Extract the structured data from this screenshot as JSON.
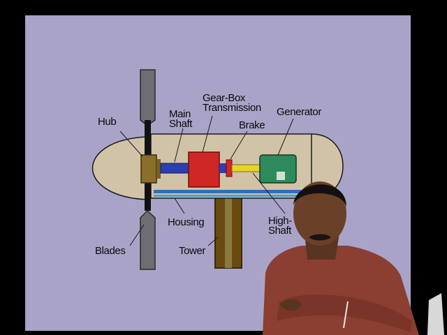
{
  "diagram": {
    "labels": {
      "hub": "Hub",
      "main_shaft": [
        "Main",
        "Shaft"
      ],
      "gear_box": [
        "Gear-Box",
        "Transmission"
      ],
      "brake": "Brake",
      "generator": "Generator",
      "housing": "Housing",
      "high_shaft": [
        "High-",
        "Shaft"
      ],
      "blades": "Blades",
      "tower": "Tower"
    },
    "colors": {
      "slide_background": "#a9a3c8",
      "housing": "#d1c3a8",
      "blade": "#6e6d73",
      "main_shaft": "#2b3fae",
      "gear_box": "#cf2626",
      "brake": "#cf2626",
      "high_shaft": "#e5d52a",
      "generator": "#2e8a5a",
      "base_plate": "#2d6fbf",
      "tower": "#6b4a12"
    }
  }
}
